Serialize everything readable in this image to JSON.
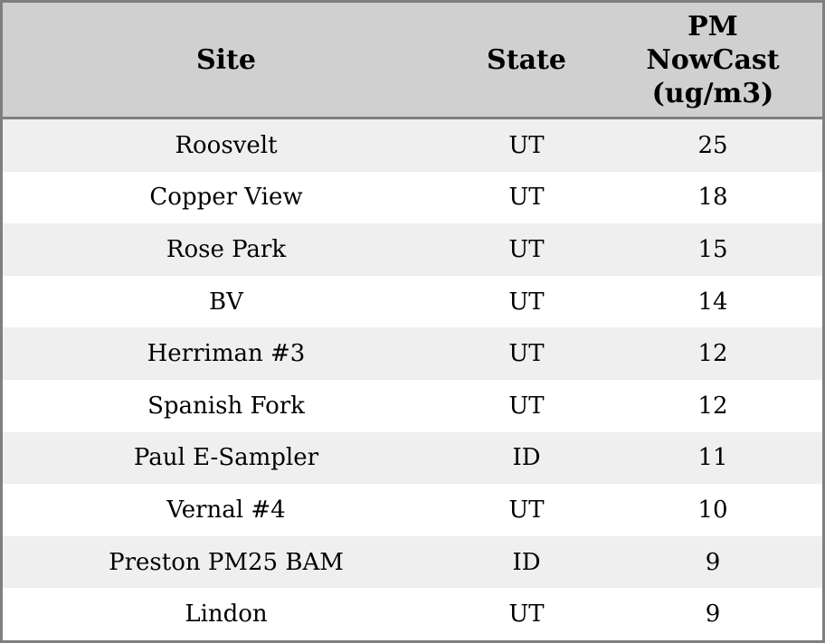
{
  "chart_data": {
    "type": "table",
    "title": "",
    "columns": [
      "Site",
      "State",
      "PM NowCast (ug/m3)"
    ],
    "rows": [
      [
        "Roosvelt",
        "UT",
        25
      ],
      [
        "Copper View",
        "UT",
        18
      ],
      [
        "Rose Park",
        "UT",
        15
      ],
      [
        "BV",
        "UT",
        14
      ],
      [
        "Herriman #3",
        "UT",
        12
      ],
      [
        "Spanish Fork",
        "UT",
        12
      ],
      [
        "Paul E-Sampler",
        "ID",
        11
      ],
      [
        "Vernal #4",
        "UT",
        10
      ],
      [
        "Preston PM25 BAM",
        "ID",
        9
      ],
      [
        "Lindon",
        "UT",
        9
      ]
    ]
  },
  "table": {
    "headers": {
      "site": "Site",
      "state": "State",
      "pm": "PM\nNowCast\n(ug/m3)"
    },
    "rows": [
      {
        "site": "Roosvelt",
        "state": "UT",
        "pm": "25"
      },
      {
        "site": "Copper View",
        "state": "UT",
        "pm": "18"
      },
      {
        "site": "Rose Park",
        "state": "UT",
        "pm": "15"
      },
      {
        "site": "BV",
        "state": "UT",
        "pm": "14"
      },
      {
        "site": "Herriman #3",
        "state": "UT",
        "pm": "12"
      },
      {
        "site": "Spanish Fork",
        "state": "UT",
        "pm": "12"
      },
      {
        "site": "Paul E-Sampler",
        "state": "ID",
        "pm": "11"
      },
      {
        "site": "Vernal #4",
        "state": "UT",
        "pm": "10"
      },
      {
        "site": "Preston PM25 BAM",
        "state": "ID",
        "pm": "9"
      },
      {
        "site": "Lindon",
        "state": "UT",
        "pm": "9"
      }
    ]
  },
  "colors": {
    "header_bg": "#d0d0d0",
    "row_alt_bg": "#efefef",
    "row_bg": "#ffffff",
    "border": "#7f7f7f",
    "text": "#000000"
  }
}
